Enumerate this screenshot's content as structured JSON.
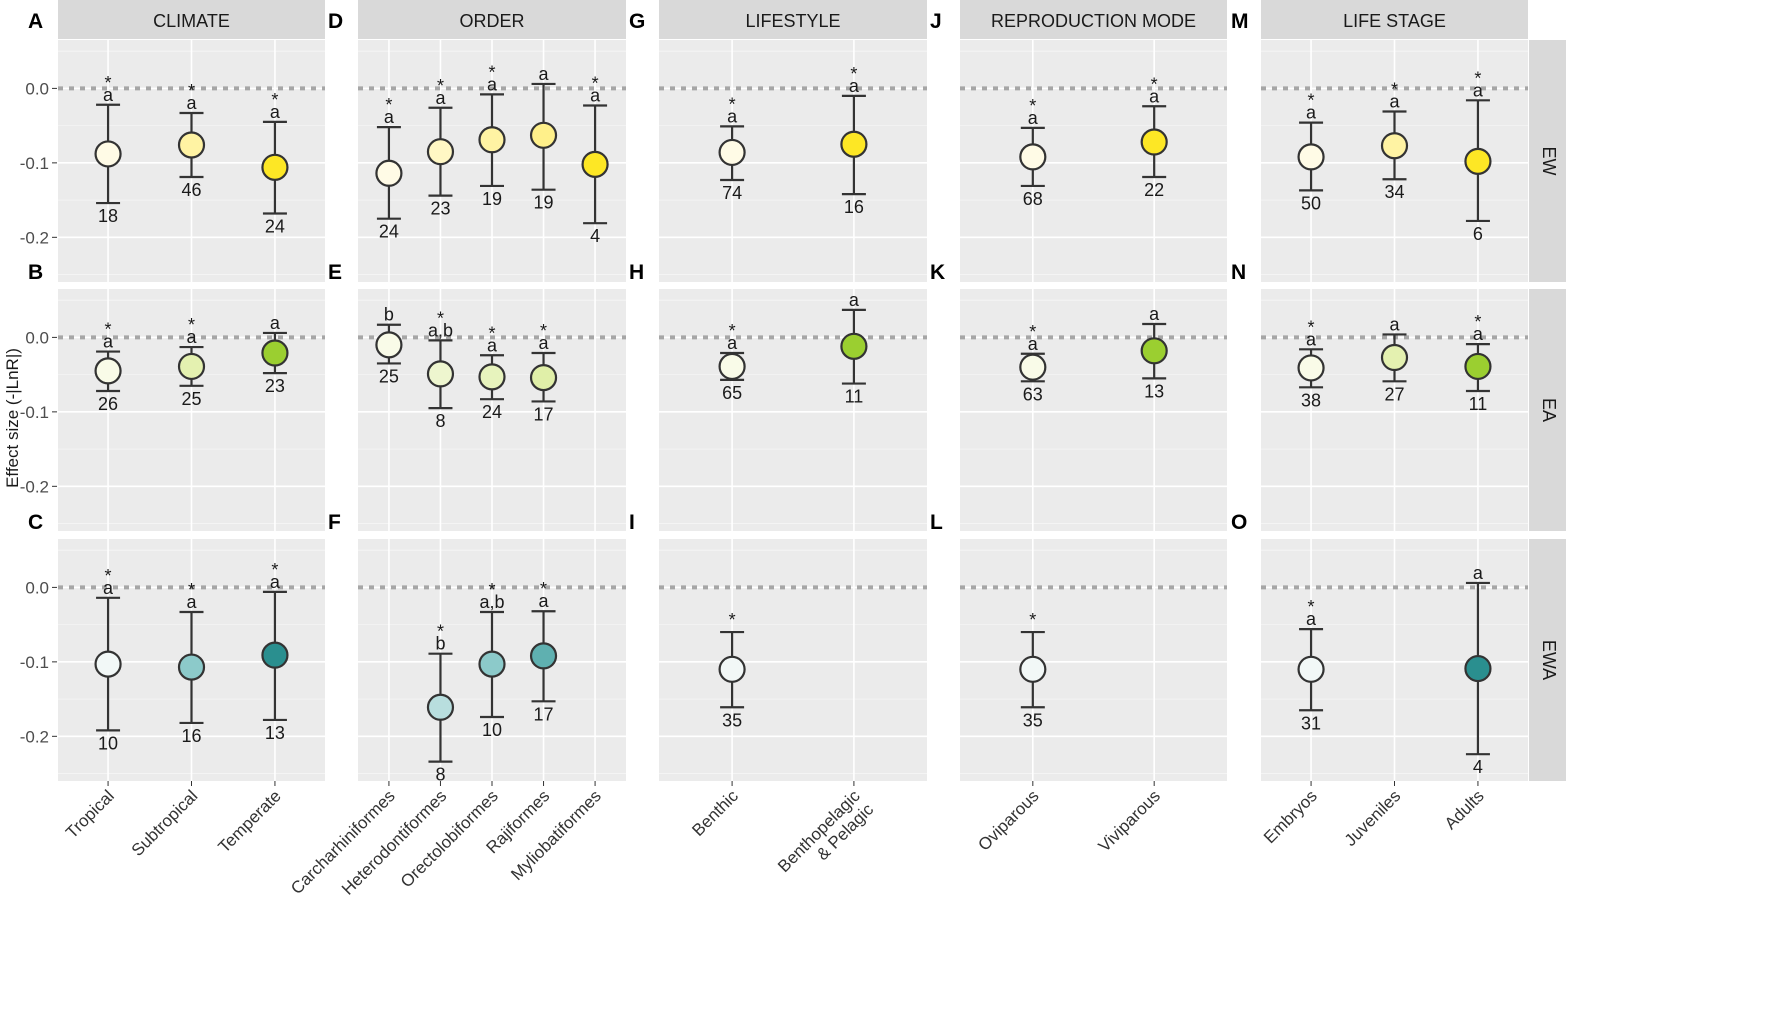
{
  "chart_data": {
    "type": "scatter",
    "ylabel": "Effect size (-|LnR|)",
    "ylim": [
      -0.26,
      0.065
    ],
    "yticks": [
      0.0,
      -0.1,
      -0.2
    ],
    "ytick_labels": [
      "0.0",
      "-0.1",
      "-0.2"
    ],
    "reference_line": 0.0,
    "row_strips": [
      "EW",
      "EA",
      "EWA"
    ],
    "columns": [
      {
        "strip": "CLIMATE",
        "categories": [
          "Tropical",
          "Subtropical",
          "Temperate"
        ]
      },
      {
        "strip": "ORDER",
        "categories": [
          "Carcharhiniformes",
          "Heterodontiformes",
          "Orectolobiformes",
          "Rajiformes",
          "Myliobatiformes"
        ]
      },
      {
        "strip": "LIFESTYLE",
        "categories": [
          "Benthic",
          "Benthopelagic\n& Pelagic"
        ]
      },
      {
        "strip": "REPRODUCTION MODE",
        "categories": [
          "Oviparous",
          "Viviparous"
        ]
      },
      {
        "strip": "LIFE STAGE",
        "categories": [
          "Embryos",
          "Juveniles",
          "Adults"
        ]
      }
    ],
    "panels": [
      {
        "letter": "A",
        "col": 0,
        "row": 0,
        "points": [
          {
            "x": 0,
            "y": -0.088,
            "lo": -0.154,
            "hi": -0.022,
            "n": "18",
            "group": "a",
            "sig": true,
            "color": "#fffbe6"
          },
          {
            "x": 1,
            "y": -0.076,
            "lo": -0.119,
            "hi": -0.033,
            "n": "46",
            "group": "a",
            "sig": true,
            "color": "#fff3a3"
          },
          {
            "x": 2,
            "y": -0.106,
            "lo": -0.168,
            "hi": -0.045,
            "n": "24",
            "group": "a",
            "sig": true,
            "color": "#fde725"
          }
        ]
      },
      {
        "letter": "B",
        "col": 0,
        "row": 1,
        "points": [
          {
            "x": 0,
            "y": -0.045,
            "lo": -0.072,
            "hi": -0.019,
            "n": "26",
            "group": "a",
            "sig": true,
            "color": "#f9fbe8"
          },
          {
            "x": 1,
            "y": -0.039,
            "lo": -0.065,
            "hi": -0.013,
            "n": "25",
            "group": "a",
            "sig": true,
            "color": "#e4f1b0"
          },
          {
            "x": 2,
            "y": -0.021,
            "lo": -0.048,
            "hi": 0.006,
            "n": "23",
            "group": "a",
            "sig": false,
            "color": "#9bcf30"
          }
        ]
      },
      {
        "letter": "C",
        "col": 0,
        "row": 2,
        "points": [
          {
            "x": 0,
            "y": -0.103,
            "lo": -0.192,
            "hi": -0.014,
            "n": "10",
            "group": "a",
            "sig": true,
            "color": "#f2f8f7"
          },
          {
            "x": 1,
            "y": -0.107,
            "lo": -0.182,
            "hi": -0.033,
            "n": "16",
            "group": "a",
            "sig": true,
            "color": "#8ccaca"
          },
          {
            "x": 2,
            "y": -0.091,
            "lo": -0.178,
            "hi": -0.006,
            "n": "13",
            "group": "a",
            "sig": true,
            "color": "#2a8f8f"
          }
        ]
      },
      {
        "letter": "D",
        "col": 1,
        "row": 0,
        "points": [
          {
            "x": 0,
            "y": -0.114,
            "lo": -0.175,
            "hi": -0.052,
            "n": "24",
            "group": "a",
            "sig": true,
            "color": "#fffbe6"
          },
          {
            "x": 1,
            "y": -0.085,
            "lo": -0.144,
            "hi": -0.026,
            "n": "23",
            "group": "a",
            "sig": true,
            "color": "#fff7c4"
          },
          {
            "x": 2,
            "y": -0.069,
            "lo": -0.131,
            "hi": -0.008,
            "n": "19",
            "group": "a",
            "sig": true,
            "color": "#fff3a3"
          },
          {
            "x": 3,
            "y": -0.063,
            "lo": -0.136,
            "hi": 0.006,
            "n": "19",
            "group": "a",
            "sig": false,
            "color": "#fff08a"
          },
          {
            "x": 4,
            "y": -0.102,
            "lo": -0.181,
            "hi": -0.023,
            "n": "4",
            "group": "a",
            "sig": true,
            "color": "#fde725"
          }
        ]
      },
      {
        "letter": "E",
        "col": 1,
        "row": 1,
        "points": [
          {
            "x": 0,
            "y": -0.01,
            "lo": -0.035,
            "hi": 0.017,
            "n": "25",
            "group": "b",
            "sig": false,
            "color": "#f9fbe8"
          },
          {
            "x": 1,
            "y": -0.049,
            "lo": -0.095,
            "hi": -0.004,
            "n": "8",
            "group": "a,b",
            "sig": true,
            "color": "#eef6cf"
          },
          {
            "x": 2,
            "y": -0.053,
            "lo": -0.083,
            "hi": -0.024,
            "n": "24",
            "group": "a",
            "sig": true,
            "color": "#e7f3bd"
          },
          {
            "x": 3,
            "y": -0.054,
            "lo": -0.086,
            "hi": -0.021,
            "n": "17",
            "group": "a",
            "sig": true,
            "color": "#e0efa8"
          }
        ]
      },
      {
        "letter": "F",
        "col": 1,
        "row": 2,
        "points": [
          {
            "x": 1,
            "y": -0.161,
            "lo": -0.234,
            "hi": -0.089,
            "n": "8",
            "group": "b",
            "sig": true,
            "color": "#b8dede"
          },
          {
            "x": 2,
            "y": -0.103,
            "lo": -0.174,
            "hi": -0.033,
            "n": "10",
            "group": "a,b",
            "sig": true,
            "color": "#8ccaca"
          },
          {
            "x": 3,
            "y": -0.092,
            "lo": -0.153,
            "hi": -0.032,
            "n": "17",
            "group": "a",
            "sig": true,
            "color": "#5fb0b0"
          }
        ]
      },
      {
        "letter": "G",
        "col": 2,
        "row": 0,
        "points": [
          {
            "x": 0,
            "y": -0.086,
            "lo": -0.123,
            "hi": -0.051,
            "n": "74",
            "group": "a",
            "sig": true,
            "color": "#fffbe6"
          },
          {
            "x": 1,
            "y": -0.075,
            "lo": -0.142,
            "hi": -0.01,
            "n": "16",
            "group": "a",
            "sig": true,
            "color": "#fde725"
          }
        ]
      },
      {
        "letter": "H",
        "col": 2,
        "row": 1,
        "points": [
          {
            "x": 0,
            "y": -0.039,
            "lo": -0.057,
            "hi": -0.021,
            "n": "65",
            "group": "a",
            "sig": true,
            "color": "#f9fbe8"
          },
          {
            "x": 1,
            "y": -0.012,
            "lo": -0.062,
            "hi": 0.037,
            "n": "11",
            "group": "a",
            "sig": false,
            "color": "#9bcf30"
          }
        ]
      },
      {
        "letter": "I",
        "col": 2,
        "row": 2,
        "points": [
          {
            "x": 0,
            "y": -0.11,
            "lo": -0.161,
            "hi": -0.06,
            "n": "35",
            "group": "",
            "sig": true,
            "color": "#f2f8f7"
          }
        ]
      },
      {
        "letter": "J",
        "col": 3,
        "row": 0,
        "points": [
          {
            "x": 0,
            "y": -0.092,
            "lo": -0.131,
            "hi": -0.053,
            "n": "68",
            "group": "a",
            "sig": true,
            "color": "#fffbe6"
          },
          {
            "x": 1,
            "y": -0.072,
            "lo": -0.119,
            "hi": -0.024,
            "n": "22",
            "group": "a",
            "sig": true,
            "color": "#fde725"
          }
        ]
      },
      {
        "letter": "K",
        "col": 3,
        "row": 1,
        "points": [
          {
            "x": 0,
            "y": -0.04,
            "lo": -0.059,
            "hi": -0.022,
            "n": "63",
            "group": "a",
            "sig": true,
            "color": "#f9fbe8"
          },
          {
            "x": 1,
            "y": -0.018,
            "lo": -0.055,
            "hi": 0.018,
            "n": "13",
            "group": "a",
            "sig": false,
            "color": "#9bcf30"
          }
        ]
      },
      {
        "letter": "L",
        "col": 3,
        "row": 2,
        "points": [
          {
            "x": 0,
            "y": -0.11,
            "lo": -0.161,
            "hi": -0.06,
            "n": "35",
            "group": "",
            "sig": true,
            "color": "#f2f8f7"
          }
        ]
      },
      {
        "letter": "M",
        "col": 4,
        "row": 0,
        "points": [
          {
            "x": 0,
            "y": -0.092,
            "lo": -0.137,
            "hi": -0.046,
            "n": "50",
            "group": "a",
            "sig": true,
            "color": "#fffbe6"
          },
          {
            "x": 1,
            "y": -0.077,
            "lo": -0.122,
            "hi": -0.031,
            "n": "34",
            "group": "a",
            "sig": true,
            "color": "#fff3a3"
          },
          {
            "x": 2,
            "y": -0.098,
            "lo": -0.178,
            "hi": -0.016,
            "n": "6",
            "group": "a",
            "sig": true,
            "color": "#fde725"
          }
        ]
      },
      {
        "letter": "N",
        "col": 4,
        "row": 1,
        "points": [
          {
            "x": 0,
            "y": -0.041,
            "lo": -0.067,
            "hi": -0.016,
            "n": "38",
            "group": "a",
            "sig": true,
            "color": "#f9fbe8"
          },
          {
            "x": 1,
            "y": -0.027,
            "lo": -0.059,
            "hi": 0.004,
            "n": "27",
            "group": "a",
            "sig": false,
            "color": "#e4f1b0"
          },
          {
            "x": 2,
            "y": -0.039,
            "lo": -0.072,
            "hi": -0.009,
            "n": "11",
            "group": "a",
            "sig": true,
            "color": "#9bcf30"
          }
        ]
      },
      {
        "letter": "O",
        "col": 4,
        "row": 2,
        "points": [
          {
            "x": 0,
            "y": -0.11,
            "lo": -0.165,
            "hi": -0.056,
            "n": "31",
            "group": "a",
            "sig": true,
            "color": "#f2f8f7"
          },
          {
            "x": 2,
            "y": -0.109,
            "lo": -0.224,
            "hi": 0.006,
            "n": "4",
            "group": "a",
            "sig": false,
            "color": "#2a8f8f"
          }
        ]
      }
    ]
  }
}
